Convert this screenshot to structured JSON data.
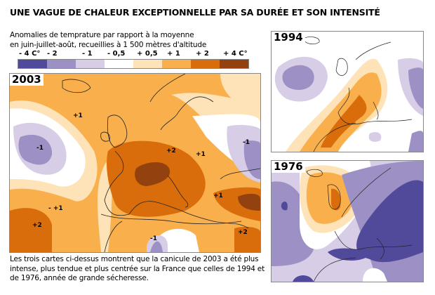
{
  "title": "UNE VAGUE DE CHALEUR EXCEPTIONNELLE PAR SA DURÉE ET SON INTENSITÉ",
  "subtitle_line1": "Anomalies de temprature par rapport à la moyenne",
  "subtitle_line2": "en juin-juillet-août, recueillies à 1 500 mètres d'altitude",
  "legend": {
    "labels": [
      "- 4 C°",
      "- 2",
      "- 1",
      "- 0,5",
      "+ 0,5",
      "+ 1",
      "+ 2",
      "+ 4 C°"
    ],
    "colors": [
      "#514a9a",
      "#9d90c4",
      "#d8cde6",
      "#ffffff",
      "#fde3b7",
      "#f9b04c",
      "#d96d0b",
      "#93420f"
    ]
  },
  "maps": {
    "m2003": {
      "year": "2003",
      "labels": [
        "+1",
        "-1",
        "+2",
        "+1",
        "-1",
        "- +1",
        "+2",
        "-1",
        "+2",
        "+1"
      ]
    },
    "m1994": {
      "year": "1994"
    },
    "m1976": {
      "year": "1976"
    }
  },
  "caption": "Les trois cartes ci-dessus montrent que la canicule de 2003 a été plus intense, plus tendue et plus centrée sur la France que celles de 1994 et de 1976, année de grande sécheresse."
}
